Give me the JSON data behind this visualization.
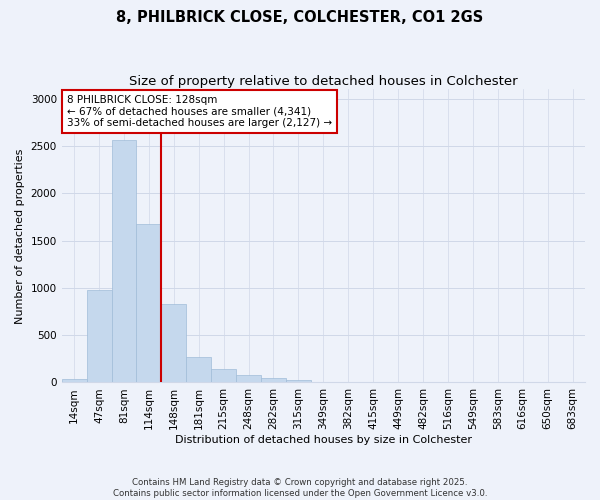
{
  "title": "8, PHILBRICK CLOSE, COLCHESTER, CO1 2GS",
  "subtitle": "Size of property relative to detached houses in Colchester",
  "xlabel": "Distribution of detached houses by size in Colchester",
  "ylabel": "Number of detached properties",
  "footer_line1": "Contains HM Land Registry data © Crown copyright and database right 2025.",
  "footer_line2": "Contains public sector information licensed under the Open Government Licence v3.0.",
  "bar_labels": [
    "14sqm",
    "47sqm",
    "81sqm",
    "114sqm",
    "148sqm",
    "181sqm",
    "215sqm",
    "248sqm",
    "282sqm",
    "315sqm",
    "349sqm",
    "382sqm",
    "415sqm",
    "449sqm",
    "482sqm",
    "516sqm",
    "549sqm",
    "583sqm",
    "616sqm",
    "650sqm",
    "683sqm"
  ],
  "bar_values": [
    40,
    980,
    2560,
    1680,
    830,
    270,
    145,
    80,
    45,
    25,
    5,
    5,
    5,
    5,
    0,
    0,
    5,
    0,
    0,
    0,
    0
  ],
  "bar_color": "#c5d8ed",
  "bar_edgecolor": "#a0bcd8",
  "grid_color": "#d0d8e8",
  "vline_x": 3.5,
  "vline_color": "#cc0000",
  "annotation_text": "8 PHILBRICK CLOSE: 128sqm\n← 67% of detached houses are smaller (4,341)\n33% of semi-detached houses are larger (2,127) →",
  "annotation_box_facecolor": "white",
  "annotation_box_edgecolor": "#cc0000",
  "ylim": [
    0,
    3100
  ],
  "yticks": [
    0,
    500,
    1000,
    1500,
    2000,
    2500,
    3000
  ],
  "background_color": "#eef2fa",
  "title_fontsize": 10.5,
  "subtitle_fontsize": 9.5,
  "axis_label_fontsize": 8,
  "tick_fontsize": 7.5,
  "annotation_fontsize": 7.5
}
